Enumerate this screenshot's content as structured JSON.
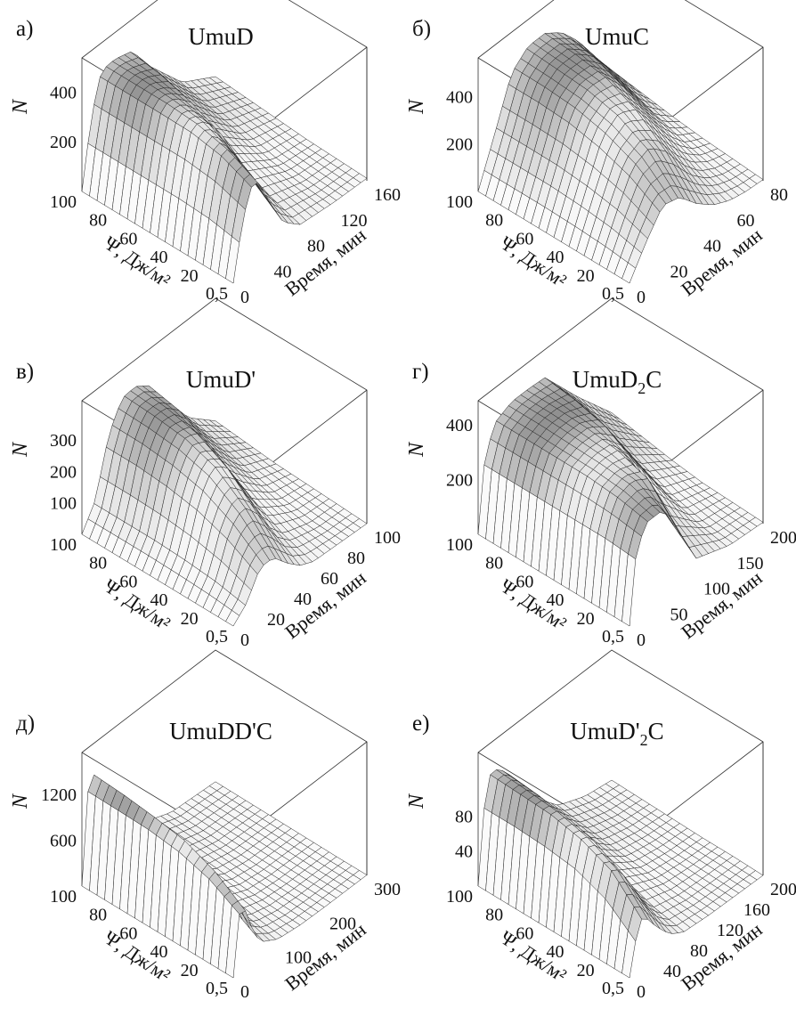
{
  "figure": {
    "panels": [
      {
        "letter": "а)",
        "title": "UmuD",
        "title_sub": "",
        "title_tail": "",
        "z_label": "N",
        "z_ticks": [
          "400",
          "200"
        ],
        "psi_ticks": [
          "100",
          "80",
          "60",
          "40",
          "20",
          "0,5"
        ],
        "time_ticks": [
          "0",
          "40",
          "80",
          "120",
          "160"
        ],
        "psi_label": "Ψ, Дж/м²",
        "time_label": "Время, мин"
      },
      {
        "letter": "б)",
        "title": "UmuC",
        "title_sub": "",
        "title_tail": "",
        "z_label": "N",
        "z_ticks": [
          "400",
          "200"
        ],
        "psi_ticks": [
          "100",
          "80",
          "60",
          "40",
          "20",
          "0,5"
        ],
        "time_ticks": [
          "0",
          "20",
          "40",
          "60",
          "80"
        ],
        "psi_label": "Ψ, Дж/м²",
        "time_label": "Время, мин"
      },
      {
        "letter": "в)",
        "title": "UmuD'",
        "title_sub": "",
        "title_tail": "",
        "z_label": "N",
        "z_ticks": [
          "300",
          "200",
          "100"
        ],
        "psi_ticks": [
          "100",
          "80",
          "60",
          "40",
          "20",
          "0,5"
        ],
        "time_ticks": [
          "0",
          "20",
          "40",
          "60",
          "80",
          "100"
        ],
        "psi_label": "Ψ, Дж/м²",
        "time_label": "Время, мин"
      },
      {
        "letter": "г)",
        "title": "UmuD",
        "title_sub": "2",
        "title_tail": "C",
        "z_label": "N",
        "z_ticks": [
          "400",
          "200"
        ],
        "psi_ticks": [
          "100",
          "80",
          "60",
          "40",
          "20",
          "0,5"
        ],
        "time_ticks": [
          "0",
          "50",
          "100",
          "150",
          "200"
        ],
        "psi_label": "Ψ, Дж/м²",
        "time_label": "Время, мин"
      },
      {
        "letter": "д)",
        "title": "UmuDD'C",
        "title_sub": "",
        "title_tail": "",
        "z_label": "N",
        "z_ticks": [
          "1200",
          "600"
        ],
        "psi_ticks": [
          "100",
          "80",
          "60",
          "40",
          "20",
          "0,5"
        ],
        "time_ticks": [
          "0",
          "100",
          "200",
          "300"
        ],
        "psi_label": "Ψ, Дж/м²",
        "time_label": "Время, мин"
      },
      {
        "letter": "е)",
        "title": "UmuD'",
        "title_sub": "2",
        "title_tail": "C",
        "z_label": "N",
        "z_ticks": [
          "80",
          "40"
        ],
        "psi_ticks": [
          "100",
          "80",
          "60",
          "40",
          "20",
          "0,5"
        ],
        "time_ticks": [
          "0",
          "40",
          "80",
          "120",
          "160",
          "200"
        ],
        "psi_label": "Ψ, Дж/м²",
        "time_label": "Время, мин"
      }
    ]
  },
  "chart_data": [
    {
      "type": "surface",
      "title": "UmuD",
      "zlabel": "N",
      "xlabel": "Ψ, Дж/м²",
      "ylabel": "Время, мин",
      "psi_range": [
        0.5,
        100
      ],
      "time_range": [
        0,
        160
      ],
      "z_ticks": [
        200,
        400
      ],
      "time": [
        0,
        10,
        20,
        30,
        40,
        60,
        80,
        120,
        160
      ],
      "series": [
        {
          "psi": 0.5,
          "values": [
            0,
            200,
            330,
            330,
            240,
            90,
            30,
            15,
            10
          ]
        },
        {
          "psi": 20,
          "values": [
            0,
            230,
            380,
            390,
            330,
            180,
            70,
            25,
            15
          ]
        },
        {
          "psi": 40,
          "values": [
            0,
            240,
            400,
            420,
            400,
            290,
            130,
            40,
            20
          ]
        },
        {
          "psi": 60,
          "values": [
            0,
            240,
            400,
            430,
            420,
            350,
            200,
            70,
            30
          ]
        },
        {
          "psi": 80,
          "values": [
            0,
            240,
            400,
            430,
            430,
            390,
            260,
            100,
            40
          ]
        },
        {
          "psi": 100,
          "values": [
            0,
            240,
            400,
            430,
            430,
            410,
            300,
            130,
            50
          ]
        }
      ]
    },
    {
      "type": "surface",
      "title": "UmuC",
      "zlabel": "N",
      "xlabel": "Ψ, Дж/м²",
      "ylabel": "Время, мин",
      "psi_range": [
        0.5,
        100
      ],
      "time_range": [
        0,
        80
      ],
      "z_ticks": [
        200,
        400
      ],
      "time": [
        0,
        10,
        20,
        30,
        40,
        50,
        60,
        70,
        80
      ],
      "series": [
        {
          "psi": 0.5,
          "values": [
            0,
            120,
            220,
            200,
            120,
            60,
            25,
            10,
            5
          ]
        },
        {
          "psi": 20,
          "values": [
            0,
            160,
            300,
            330,
            260,
            150,
            70,
            30,
            15
          ]
        },
        {
          "psi": 40,
          "values": [
            0,
            180,
            350,
            400,
            360,
            250,
            140,
            60,
            25
          ]
        },
        {
          "psi": 60,
          "values": [
            0,
            190,
            380,
            430,
            420,
            330,
            210,
            100,
            40
          ]
        },
        {
          "psi": 80,
          "values": [
            0,
            190,
            390,
            440,
            440,
            380,
            270,
            150,
            60
          ]
        },
        {
          "psi": 100,
          "values": [
            0,
            190,
            390,
            450,
            450,
            400,
            310,
            190,
            80
          ]
        }
      ]
    },
    {
      "type": "surface",
      "title": "UmuD'",
      "zlabel": "N",
      "xlabel": "Ψ, Дж/м²",
      "ylabel": "Время, мин",
      "psi_range": [
        0.5,
        100
      ],
      "time_range": [
        0,
        100
      ],
      "z_ticks": [
        100,
        200,
        300
      ],
      "time": [
        0,
        10,
        20,
        30,
        40,
        50,
        60,
        80,
        100
      ],
      "series": [
        {
          "psi": 0.5,
          "values": [
            0,
            40,
            120,
            120,
            70,
            30,
            10,
            5,
            0
          ]
        },
        {
          "psi": 20,
          "values": [
            0,
            60,
            180,
            220,
            170,
            90,
            40,
            10,
            5
          ]
        },
        {
          "psi": 40,
          "values": [
            0,
            70,
            220,
            290,
            260,
            170,
            90,
            25,
            10
          ]
        },
        {
          "psi": 60,
          "values": [
            0,
            75,
            240,
            320,
            310,
            240,
            150,
            50,
            15
          ]
        },
        {
          "psi": 80,
          "values": [
            0,
            75,
            250,
            330,
            330,
            290,
            200,
            80,
            25
          ]
        },
        {
          "psi": 100,
          "values": [
            0,
            75,
            250,
            335,
            340,
            310,
            240,
            110,
            35
          ]
        }
      ]
    },
    {
      "type": "surface",
      "title": "UmuD2C",
      "zlabel": "N",
      "xlabel": "Ψ, Дж/м²",
      "ylabel": "Время, мин",
      "psi_range": [
        0.5,
        100
      ],
      "time_range": [
        0,
        200
      ],
      "z_ticks": [
        200,
        400
      ],
      "time": [
        0,
        10,
        25,
        50,
        75,
        100,
        150,
        200
      ],
      "series": [
        {
          "psi": 0.5,
          "values": [
            0,
            250,
            330,
            330,
            200,
            60,
            15,
            5
          ]
        },
        {
          "psi": 20,
          "values": [
            0,
            260,
            350,
            370,
            330,
            150,
            30,
            10
          ]
        },
        {
          "psi": 40,
          "values": [
            0,
            260,
            360,
            380,
            370,
            270,
            60,
            15
          ]
        },
        {
          "psi": 60,
          "values": [
            0,
            260,
            360,
            385,
            385,
            340,
            110,
            30
          ]
        },
        {
          "psi": 80,
          "values": [
            0,
            260,
            360,
            390,
            390,
            370,
            170,
            50
          ]
        },
        {
          "psi": 100,
          "values": [
            0,
            260,
            360,
            390,
            390,
            385,
            220,
            70
          ]
        }
      ]
    },
    {
      "type": "surface",
      "title": "UmuDD'C",
      "zlabel": "N",
      "xlabel": "Ψ, Дж/м²",
      "ylabel": "Время, мин",
      "psi_range": [
        0.5,
        100
      ],
      "time_range": [
        0,
        300
      ],
      "z_ticks": [
        600,
        1200
      ],
      "time": [
        0,
        10,
        20,
        40,
        60,
        100,
        150,
        200,
        300
      ],
      "series": [
        {
          "psi": 0.5,
          "values": [
            0,
            700,
            900,
            500,
            200,
            60,
            20,
            10,
            5
          ]
        },
        {
          "psi": 20,
          "values": [
            0,
            900,
            1150,
            800,
            400,
            120,
            40,
            15,
            5
          ]
        },
        {
          "psi": 40,
          "values": [
            0,
            1000,
            1300,
            1000,
            600,
            220,
            70,
            25,
            10
          ]
        },
        {
          "psi": 60,
          "values": [
            0,
            1050,
            1350,
            1100,
            750,
            320,
            110,
            40,
            15
          ]
        },
        {
          "psi": 80,
          "values": [
            0,
            1050,
            1380,
            1180,
            850,
            400,
            150,
            55,
            20
          ]
        },
        {
          "psi": 100,
          "values": [
            0,
            1050,
            1400,
            1220,
            920,
            460,
            190,
            70,
            25
          ]
        }
      ]
    },
    {
      "type": "surface",
      "title": "UmuD'2C",
      "zlabel": "N",
      "xlabel": "Ψ, Дж/м²",
      "ylabel": "Время, мин",
      "psi_range": [
        0.5,
        100
      ],
      "time_range": [
        0,
        200
      ],
      "z_ticks": [
        40,
        80
      ],
      "time": [
        0,
        10,
        20,
        40,
        60,
        80,
        120,
        160,
        200
      ],
      "series": [
        {
          "psi": 0.5,
          "values": [
            0,
            40,
            60,
            35,
            15,
            5,
            2,
            1,
            0
          ]
        },
        {
          "psi": 20,
          "values": [
            0,
            70,
            95,
            70,
            35,
            12,
            4,
            2,
            1
          ]
        },
        {
          "psi": 40,
          "values": [
            0,
            85,
            110,
            90,
            55,
            25,
            8,
            3,
            1
          ]
        },
        {
          "psi": 60,
          "values": [
            0,
            90,
            118,
            100,
            70,
            38,
            12,
            5,
            2
          ]
        },
        {
          "psi": 80,
          "values": [
            0,
            92,
            120,
            105,
            78,
            48,
            17,
            7,
            3
          ]
        },
        {
          "psi": 100,
          "values": [
            0,
            92,
            122,
            108,
            83,
            55,
            22,
            9,
            4
          ]
        }
      ]
    }
  ]
}
